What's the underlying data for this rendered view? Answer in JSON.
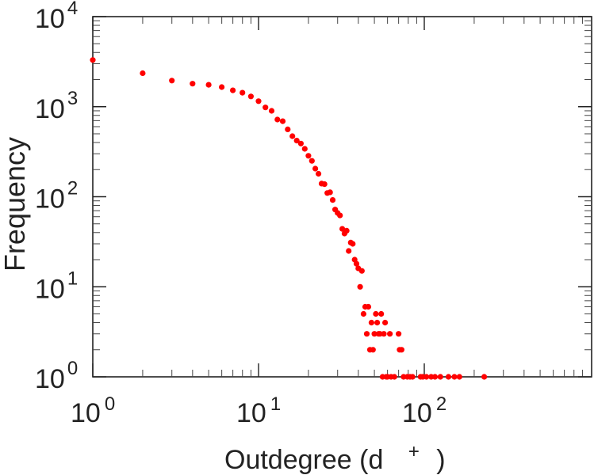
{
  "chart_data": {
    "type": "scatter",
    "xlabel": "Outdegree (d",
    "xlabel_superscript": "+",
    "xlabel_close": ")",
    "ylabel": "Frequency",
    "x_scale": "log",
    "y_scale": "log",
    "xlim": [
      1,
      1000
    ],
    "ylim": [
      1,
      10000
    ],
    "grid": false,
    "marker_color": "#ff0000",
    "x_ticks": [
      {
        "base": "10",
        "exp": "0",
        "value": 1
      },
      {
        "base": "10",
        "exp": "1",
        "value": 10
      },
      {
        "base": "10",
        "exp": "2",
        "value": 100
      }
    ],
    "y_ticks": [
      {
        "base": "10",
        "exp": "0",
        "value": 1
      },
      {
        "base": "10",
        "exp": "1",
        "value": 10
      },
      {
        "base": "10",
        "exp": "2",
        "value": 100
      },
      {
        "base": "10",
        "exp": "3",
        "value": 1000
      },
      {
        "base": "10",
        "exp": "4",
        "value": 10000
      }
    ],
    "points": [
      [
        1,
        3300
      ],
      [
        2,
        2350
      ],
      [
        3,
        1950
      ],
      [
        4,
        1800
      ],
      [
        5,
        1750
      ],
      [
        6,
        1650
      ],
      [
        7,
        1520
      ],
      [
        8,
        1430
      ],
      [
        9,
        1300
      ],
      [
        10,
        1150
      ],
      [
        11,
        980
      ],
      [
        12,
        900
      ],
      [
        13,
        720
      ],
      [
        14,
        690
      ],
      [
        15,
        560
      ],
      [
        16,
        470
      ],
      [
        17,
        420
      ],
      [
        18,
        390
      ],
      [
        19,
        340
      ],
      [
        20,
        285
      ],
      [
        21,
        250
      ],
      [
        22,
        205
      ],
      [
        23,
        180
      ],
      [
        24,
        140
      ],
      [
        25,
        138
      ],
      [
        26,
        110
      ],
      [
        27,
        112
      ],
      [
        28,
        92
      ],
      [
        29,
        72
      ],
      [
        30,
        66
      ],
      [
        31,
        62
      ],
      [
        32,
        44
      ],
      [
        33,
        39
      ],
      [
        34,
        42
      ],
      [
        35,
        25
      ],
      [
        36,
        31
      ],
      [
        37,
        30
      ],
      [
        38,
        20
      ],
      [
        39,
        18
      ],
      [
        40,
        16
      ],
      [
        41,
        10
      ],
      [
        42,
        15
      ],
      [
        43,
        5
      ],
      [
        44,
        6
      ],
      [
        45,
        3
      ],
      [
        46,
        6
      ],
      [
        47,
        2
      ],
      [
        48,
        4
      ],
      [
        49,
        2
      ],
      [
        50,
        3
      ],
      [
        51,
        5
      ],
      [
        52,
        4
      ],
      [
        53,
        3
      ],
      [
        54,
        3
      ],
      [
        55,
        5
      ],
      [
        56,
        1
      ],
      [
        57,
        3
      ],
      [
        58,
        4
      ],
      [
        59,
        1
      ],
      [
        60,
        1
      ],
      [
        62,
        3
      ],
      [
        63,
        1
      ],
      [
        66,
        1
      ],
      [
        70,
        3
      ],
      [
        71,
        2
      ],
      [
        73,
        2
      ],
      [
        75,
        1
      ],
      [
        79,
        1
      ],
      [
        82,
        1
      ],
      [
        85,
        1
      ],
      [
        95,
        1
      ],
      [
        98,
        1
      ],
      [
        103,
        1
      ],
      [
        110,
        1
      ],
      [
        116,
        1
      ],
      [
        125,
        1
      ],
      [
        140,
        1
      ],
      [
        152,
        1
      ],
      [
        163,
        1
      ],
      [
        230,
        1
      ]
    ]
  }
}
